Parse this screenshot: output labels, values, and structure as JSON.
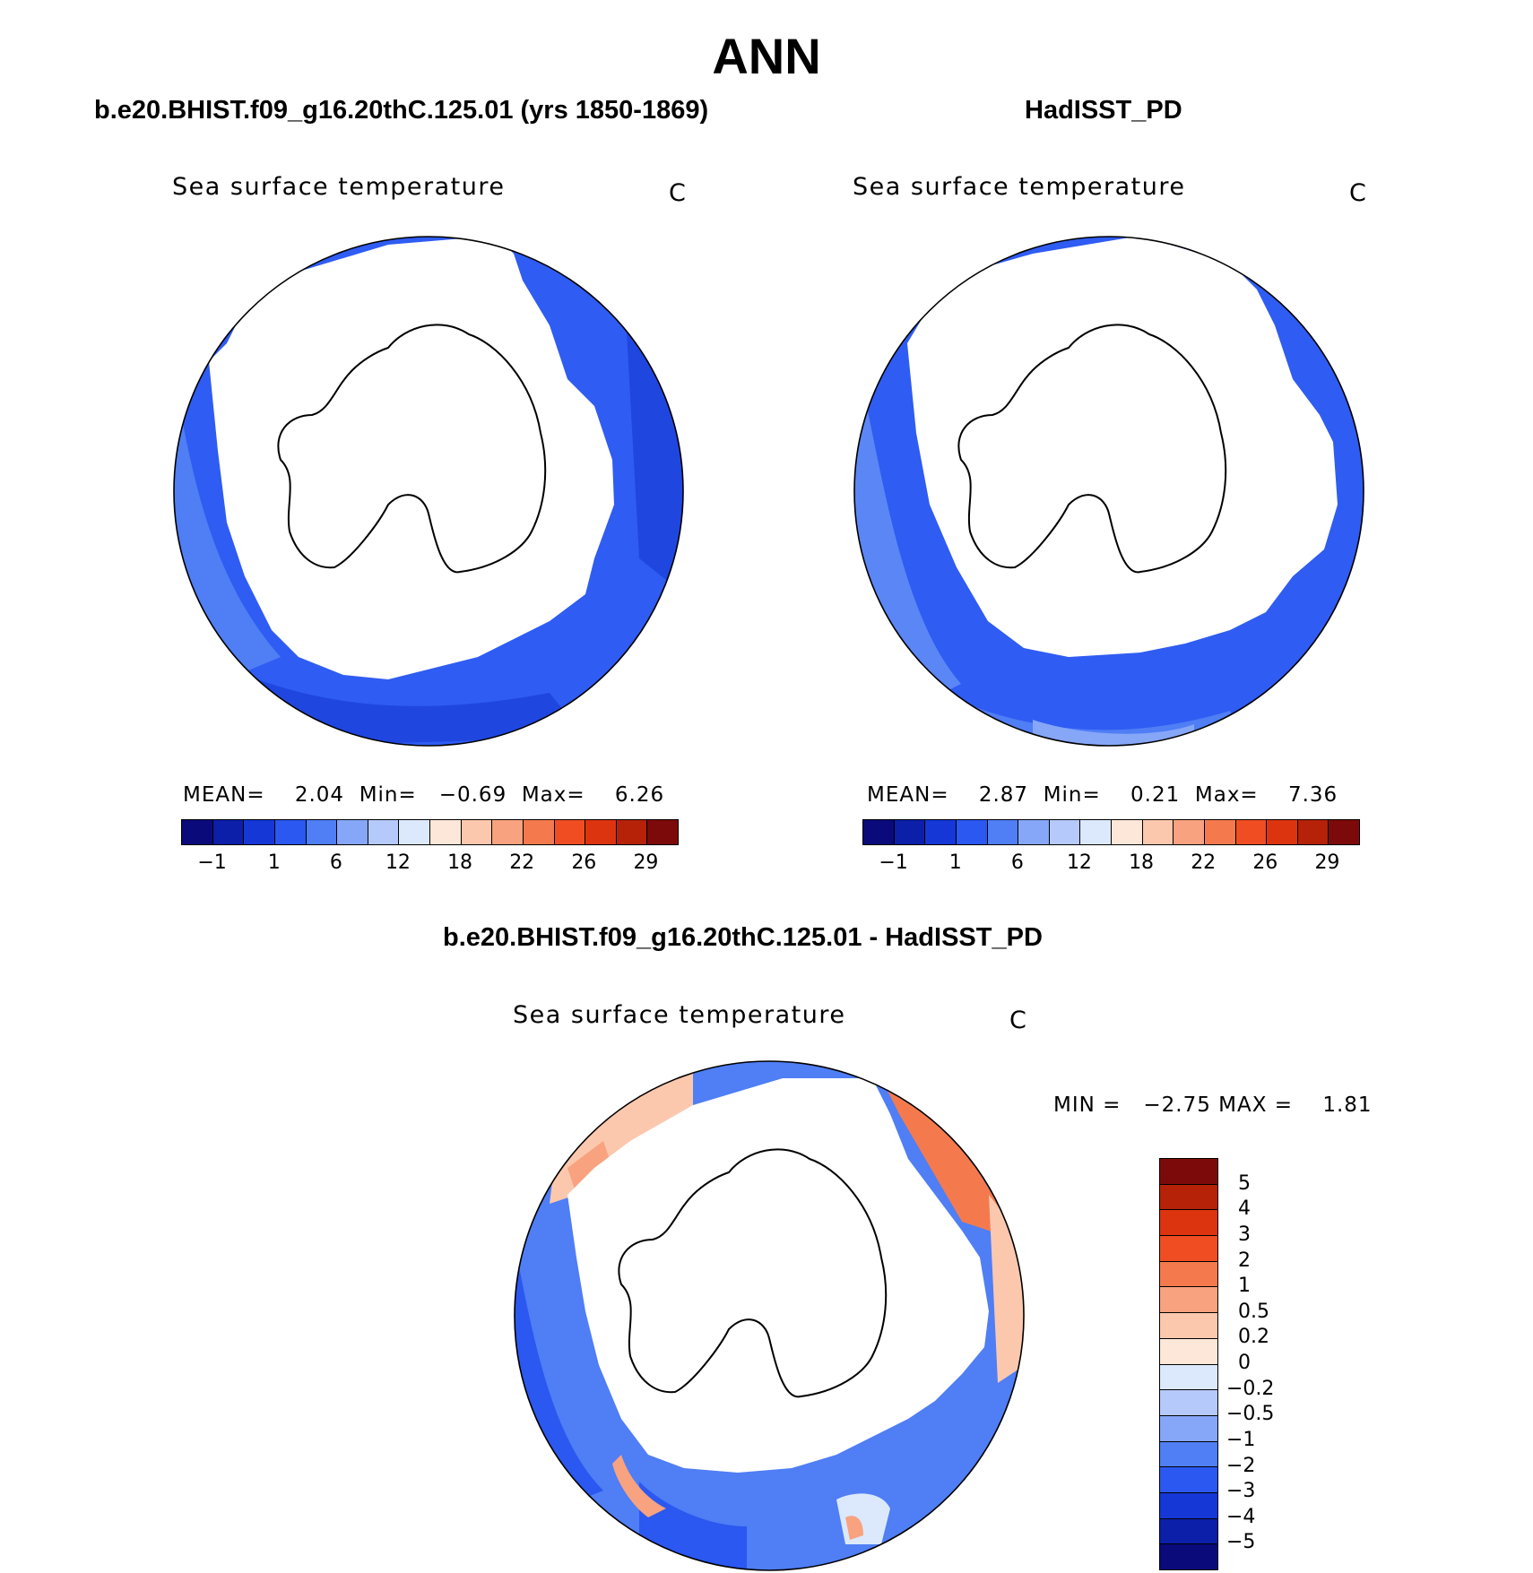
{
  "page_title": "ANN",
  "panels": [
    {
      "title": "b.e20.BHIST.f09_g16.20thC.125.01 (yrs 1850-1869)",
      "variable": "Sea surface temperature",
      "units": "C",
      "stats": {
        "mean_label": "MEAN=",
        "mean": "2.04",
        "min_label": "Min=",
        "min": "−0.69",
        "max_label": "Max=",
        "max": "6.26"
      }
    },
    {
      "title": "HadISST_PD",
      "variable": "Sea surface temperature",
      "units": "C",
      "stats": {
        "mean_label": "MEAN=",
        "mean": "2.87",
        "min_label": "Min=",
        "min": "0.21",
        "max_label": "Max=",
        "max": "7.36"
      }
    },
    {
      "title": "b.e20.BHIST.f09_g16.20thC.125.01 - HadISST_PD",
      "variable": "Sea surface temperature",
      "units": "C",
      "stats": {
        "min_label": "MIN =",
        "min": "−2.75",
        "max_label": "MAX =",
        "max": "1.81"
      }
    }
  ],
  "abs_colorbar": {
    "colors": [
      "#0a0a7a",
      "#0b1fa8",
      "#1437d6",
      "#2a58f0",
      "#4f7ef5",
      "#86a6f8",
      "#b5c9fa",
      "#dce8fc",
      "#fde7d8",
      "#fbc8ae",
      "#f8a27f",
      "#f47a4e",
      "#f04e22",
      "#dd3410",
      "#b52208",
      "#7d0a0a"
    ],
    "tick_labels": [
      "−1",
      "1",
      "6",
      "12",
      "18",
      "22",
      "26",
      "29"
    ]
  },
  "diff_colorbar": {
    "colors_top_to_bottom": [
      "#7d0a0a",
      "#b52208",
      "#dd3410",
      "#f04e22",
      "#f47a4e",
      "#f8a27f",
      "#fbc8ae",
      "#fde7d8",
      "#dce8fc",
      "#b5c9fa",
      "#86a6f8",
      "#4f7ef5",
      "#2a58f0",
      "#1437d6",
      "#0b1fa8",
      "#0a0a7a"
    ],
    "tick_labels": [
      "5",
      "4",
      "3",
      "2",
      "1",
      "0.5",
      "0.2",
      "0",
      "−0.2",
      "−0.5",
      "−1",
      "−2",
      "−3",
      "−4",
      "−5"
    ]
  }
}
